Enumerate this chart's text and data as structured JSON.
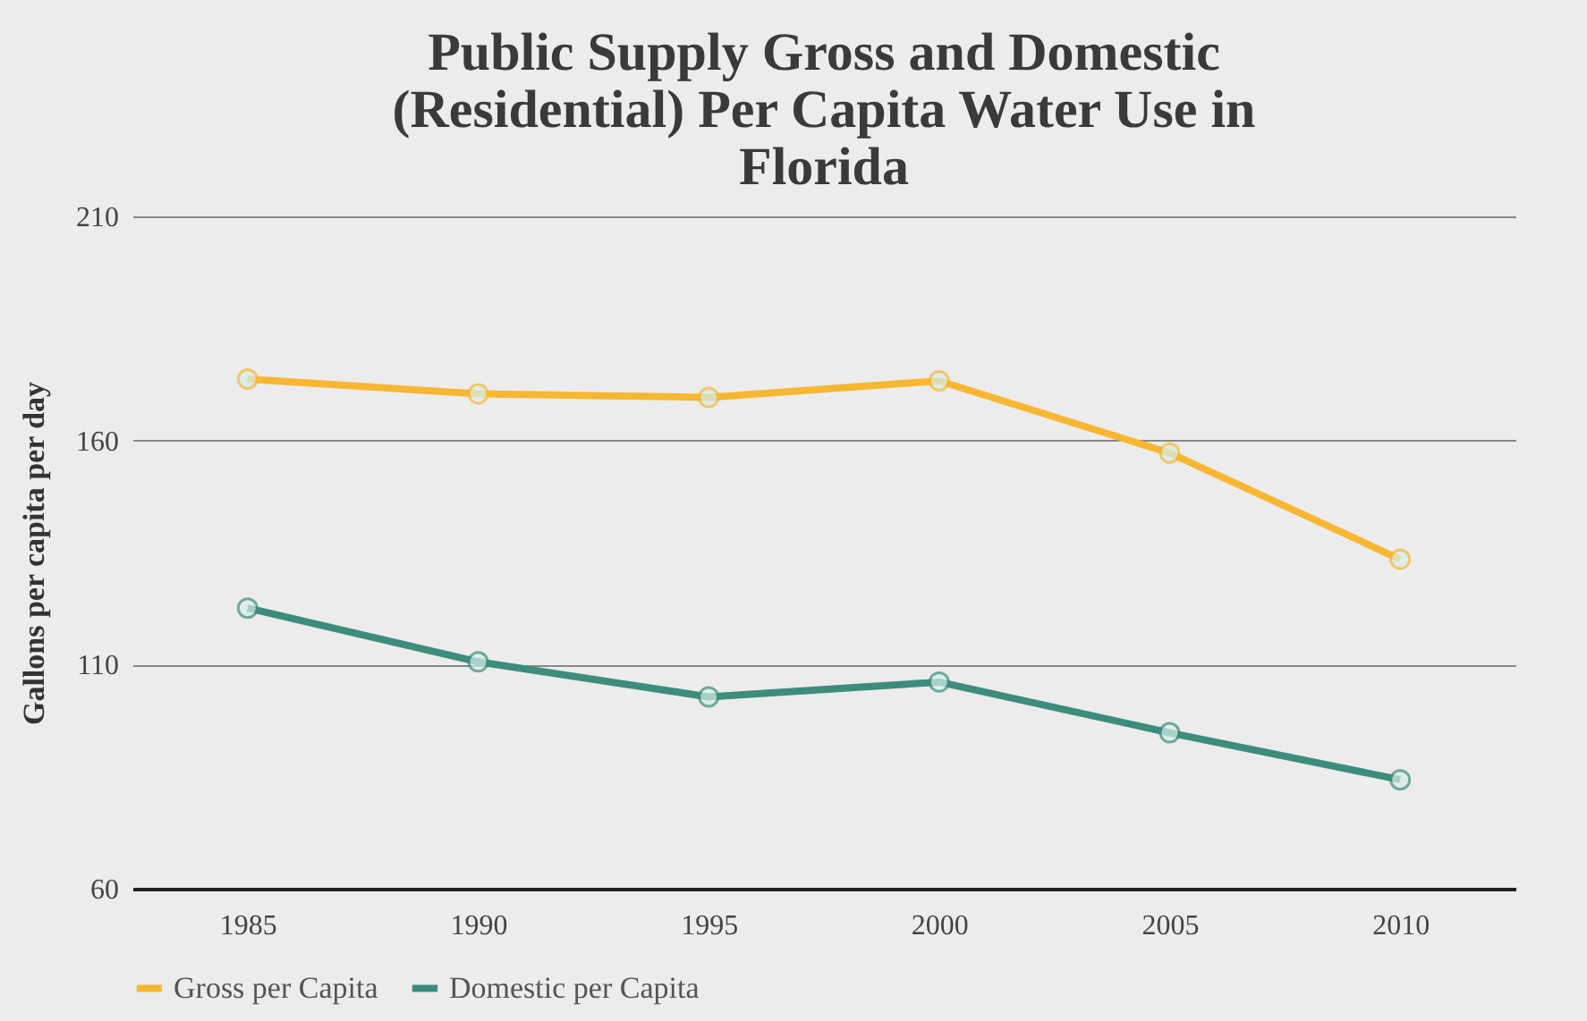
{
  "chart_data": {
    "type": "line",
    "title": "Public Supply Gross and Domestic (Residential) Per Capita Water Use in Florida",
    "ylabel": "Gallons per capita per day",
    "categories": [
      "1985",
      "1990",
      "1995",
      "2000",
      "2005",
      "2010"
    ],
    "series": [
      {
        "name": "Gross per Capita",
        "color": "#f7b733",
        "values": [
          173.7,
          170.4,
          169.6,
          173.3,
          157.2,
          133.5
        ]
      },
      {
        "name": "Domestic per Capita",
        "color": "#3d8c7c",
        "values": [
          122.6,
          110.6,
          102.8,
          106.1,
          94.8,
          84.3
        ]
      }
    ],
    "ylim": [
      60,
      210
    ],
    "yticks": [
      60,
      110,
      160,
      210
    ],
    "grid": "y",
    "legend": "bottom",
    "marker": "circle",
    "line_style": "solid"
  }
}
